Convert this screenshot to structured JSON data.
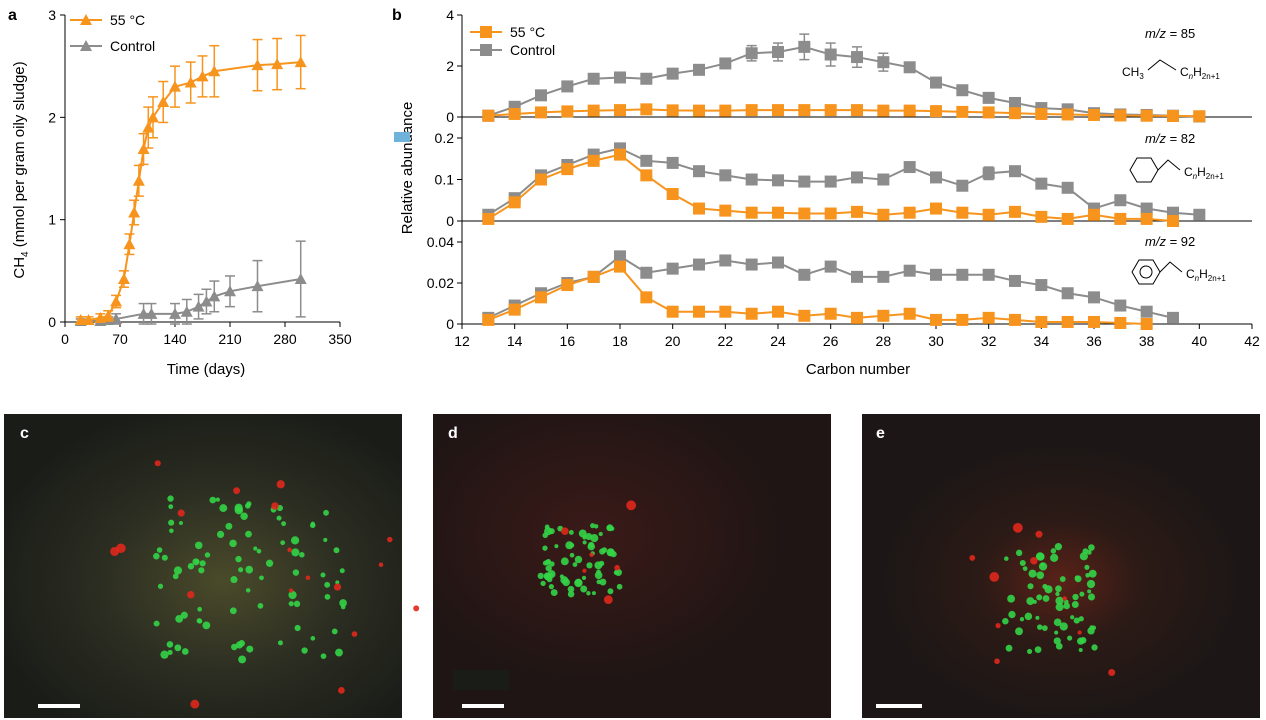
{
  "panels": {
    "a": "a",
    "b": "b",
    "c": "c",
    "d": "d",
    "e": "e"
  },
  "colors": {
    "orange": "#f7941d",
    "grey": "#8c8c8c",
    "axis": "#000000"
  },
  "chart_data": [
    {
      "id": "a",
      "type": "line",
      "xlabel": "Time (days)",
      "ylabel_main": "CH",
      "ylabel_sub": "4",
      "ylabel_rest": " (mmol per gram oily sludge)",
      "xlim": [
        0,
        350
      ],
      "ylim": [
        0,
        3
      ],
      "xticks": [
        "0",
        "70",
        "140",
        "210",
        "280",
        "350"
      ],
      "yticks": [
        "0",
        "1",
        "2",
        "3"
      ],
      "marker": "triangle",
      "legend_placement": "top-left",
      "series": [
        {
          "name": "55 °C",
          "color": "#f7941d",
          "x": [
            20,
            30,
            45,
            55,
            65,
            75,
            82,
            88,
            94,
            100,
            106,
            112,
            125,
            140,
            160,
            175,
            190,
            245,
            270,
            300
          ],
          "y": [
            0.02,
            0.02,
            0.04,
            0.06,
            0.2,
            0.42,
            0.76,
            1.07,
            1.38,
            1.69,
            1.9,
            2.0,
            2.15,
            2.3,
            2.34,
            2.4,
            2.45,
            2.51,
            2.52,
            2.54
          ],
          "err": [
            0.03,
            0.03,
            0.04,
            0.05,
            0.06,
            0.08,
            0.1,
            0.12,
            0.15,
            0.15,
            0.2,
            0.2,
            0.2,
            0.2,
            0.2,
            0.2,
            0.25,
            0.25,
            0.25,
            0.26
          ]
        },
        {
          "name": "Control",
          "color": "#8c8c8c",
          "x": [
            20,
            45,
            55,
            65,
            100,
            110,
            140,
            155,
            170,
            180,
            190,
            210,
            245,
            300
          ],
          "y": [
            0.01,
            0.01,
            0.02,
            0.03,
            0.08,
            0.08,
            0.08,
            0.1,
            0.15,
            0.2,
            0.25,
            0.3,
            0.35,
            0.42
          ],
          "err": [
            0.02,
            0.02,
            0.03,
            0.05,
            0.1,
            0.1,
            0.1,
            0.12,
            0.12,
            0.12,
            0.15,
            0.15,
            0.25,
            0.37
          ]
        }
      ]
    },
    {
      "id": "b",
      "type": "line",
      "xlabel": "Carbon number",
      "ylabel": "Relative abundance",
      "xlim": [
        12,
        42
      ],
      "xticks": [
        "12",
        "14",
        "16",
        "18",
        "20",
        "22",
        "24",
        "26",
        "28",
        "30",
        "32",
        "34",
        "36",
        "38",
        "40",
        "42"
      ],
      "marker": "square",
      "legend": [
        "55 °C",
        "Control"
      ],
      "legend_placement": "top-left",
      "subplots": [
        {
          "mz_prefix": "m/z",
          "mz_value": "= 85",
          "ylim": [
            0,
            4
          ],
          "yticks": [
            "0",
            "2",
            "4"
          ],
          "structure": {
            "prefix": "CH",
            "prefix_sub": "3",
            "c": "C",
            "n": "n",
            "h": "H",
            "h_sub": "2n+1"
          },
          "series": [
            {
              "name": "55 °C",
              "color": "#f7941d",
              "x": [
                13,
                14,
                15,
                16,
                17,
                18,
                19,
                20,
                21,
                22,
                23,
                24,
                25,
                26,
                27,
                28,
                29,
                30,
                31,
                32,
                33,
                34,
                35,
                36,
                37,
                38,
                39,
                40
              ],
              "y": [
                0.05,
                0.12,
                0.18,
                0.22,
                0.25,
                0.27,
                0.3,
                0.26,
                0.25,
                0.25,
                0.27,
                0.27,
                0.27,
                0.27,
                0.27,
                0.25,
                0.25,
                0.23,
                0.2,
                0.18,
                0.15,
                0.12,
                0.1,
                0.08,
                0.06,
                0.05,
                0.04,
                0.03
              ],
              "err": [
                0,
                0,
                0,
                0,
                0,
                0,
                0,
                0,
                0,
                0,
                0,
                0,
                0,
                0,
                0,
                0,
                0,
                0,
                0,
                0,
                0,
                0,
                0,
                0,
                0,
                0,
                0,
                0
              ]
            },
            {
              "name": "Control",
              "color": "#8c8c8c",
              "x": [
                13,
                14,
                15,
                16,
                17,
                18,
                19,
                20,
                21,
                22,
                23,
                24,
                25,
                26,
                27,
                28,
                29,
                30,
                31,
                32,
                33,
                34,
                35,
                36,
                37,
                38,
                39,
                40
              ],
              "y": [
                0.05,
                0.4,
                0.85,
                1.2,
                1.5,
                1.55,
                1.5,
                1.7,
                1.85,
                2.1,
                2.5,
                2.55,
                2.75,
                2.45,
                2.35,
                2.15,
                1.95,
                1.35,
                1.05,
                0.75,
                0.55,
                0.35,
                0.3,
                0.15,
                0.1,
                0.08,
                0.05,
                0.02
              ],
              "err": [
                0,
                0,
                0,
                0,
                0,
                0,
                0,
                0,
                0.1,
                0.1,
                0.3,
                0.35,
                0.5,
                0.45,
                0.4,
                0.35,
                0.1,
                0,
                0,
                0,
                0,
                0,
                0,
                0,
                0,
                0,
                0,
                0
              ]
            }
          ]
        },
        {
          "mz_prefix": "m/z",
          "mz_value": "= 82",
          "ylim": [
            0,
            0.2
          ],
          "yticks": [
            "0",
            "0.1",
            "0.2"
          ],
          "structure": {
            "ring": "cyclohexane",
            "c": "C",
            "n": "n",
            "h": "H",
            "h_sub": "2n+1"
          },
          "series": [
            {
              "name": "55 °C",
              "color": "#f7941d",
              "x": [
                13,
                14,
                15,
                16,
                17,
                18,
                19,
                20,
                21,
                22,
                23,
                24,
                25,
                26,
                27,
                28,
                29,
                30,
                31,
                32,
                33,
                34,
                35,
                36,
                37,
                38,
                39
              ],
              "y": [
                0.005,
                0.045,
                0.1,
                0.125,
                0.145,
                0.16,
                0.11,
                0.065,
                0.03,
                0.025,
                0.02,
                0.02,
                0.018,
                0.018,
                0.022,
                0.015,
                0.02,
                0.03,
                0.02,
                0.015,
                0.022,
                0.01,
                0.005,
                0.015,
                0.005,
                0.005,
                0.0
              ],
              "err": [
                0,
                0,
                0,
                0,
                0,
                0,
                0,
                0,
                0,
                0,
                0,
                0,
                0,
                0,
                0,
                0,
                0,
                0,
                0,
                0,
                0,
                0,
                0,
                0,
                0,
                0,
                0
              ]
            },
            {
              "name": "Control",
              "color": "#8c8c8c",
              "x": [
                13,
                14,
                15,
                16,
                17,
                18,
                19,
                20,
                21,
                22,
                23,
                24,
                25,
                26,
                27,
                28,
                29,
                30,
                31,
                32,
                33,
                34,
                35,
                36,
                37,
                38,
                39,
                40
              ],
              "y": [
                0.015,
                0.055,
                0.11,
                0.135,
                0.16,
                0.175,
                0.145,
                0.14,
                0.12,
                0.11,
                0.1,
                0.098,
                0.095,
                0.095,
                0.105,
                0.1,
                0.13,
                0.105,
                0.085,
                0.115,
                0.12,
                0.09,
                0.08,
                0.03,
                0.05,
                0.03,
                0.02,
                0.015
              ],
              "err": [
                0,
                0,
                0,
                0,
                0.01,
                0.01,
                0,
                0,
                0,
                0,
                0,
                0,
                0,
                0,
                0,
                0,
                0,
                0,
                0,
                0.015,
                0,
                0,
                0,
                0,
                0,
                0,
                0,
                0
              ]
            }
          ]
        },
        {
          "mz_prefix": "m/z",
          "mz_value": "= 92",
          "ylim": [
            0,
            0.04
          ],
          "yticks": [
            "0",
            "0.02",
            "0.04"
          ],
          "structure": {
            "ring": "benzene",
            "c": "C",
            "n": "n",
            "h": "H",
            "h_sub": "2n+1"
          },
          "series": [
            {
              "name": "55 °C",
              "color": "#f7941d",
              "x": [
                13,
                14,
                15,
                16,
                17,
                18,
                19,
                20,
                21,
                22,
                23,
                24,
                25,
                26,
                27,
                28,
                29,
                30,
                31,
                32,
                33,
                34,
                35,
                36,
                37,
                38
              ],
              "y": [
                0.002,
                0.007,
                0.013,
                0.019,
                0.023,
                0.028,
                0.013,
                0.006,
                0.006,
                0.006,
                0.005,
                0.006,
                0.004,
                0.005,
                0.003,
                0.004,
                0.005,
                0.002,
                0.002,
                0.003,
                0.002,
                0.001,
                0.001,
                0.001,
                0.0005,
                0.0
              ],
              "err": [
                0,
                0,
                0,
                0,
                0,
                0,
                0,
                0,
                0,
                0,
                0,
                0,
                0,
                0,
                0,
                0,
                0,
                0,
                0,
                0,
                0,
                0,
                0,
                0,
                0,
                0
              ]
            },
            {
              "name": "Control",
              "color": "#8c8c8c",
              "x": [
                13,
                14,
                15,
                16,
                17,
                18,
                19,
                20,
                21,
                22,
                23,
                24,
                25,
                26,
                27,
                28,
                29,
                30,
                31,
                32,
                33,
                34,
                35,
                36,
                37,
                38,
                39
              ],
              "y": [
                0.003,
                0.009,
                0.015,
                0.02,
                0.023,
                0.033,
                0.025,
                0.027,
                0.029,
                0.031,
                0.029,
                0.03,
                0.024,
                0.028,
                0.023,
                0.023,
                0.026,
                0.024,
                0.024,
                0.024,
                0.021,
                0.019,
                0.015,
                0.013,
                0.009,
                0.006,
                0.003
              ],
              "err": [
                0,
                0,
                0,
                0,
                0,
                0.002,
                0,
                0,
                0,
                0,
                0,
                0,
                0,
                0,
                0,
                0,
                0,
                0,
                0,
                0,
                0.002,
                0.002,
                0,
                0,
                0,
                0,
                0
              ]
            }
          ]
        }
      ]
    }
  ]
}
